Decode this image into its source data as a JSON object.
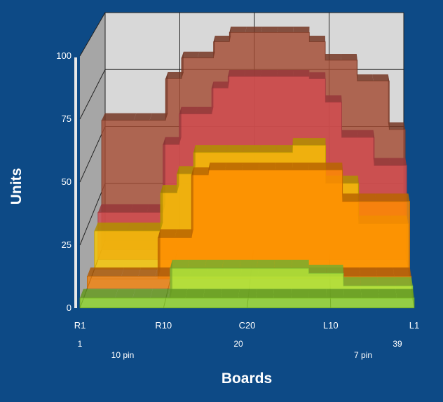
{
  "chart_data": {
    "type": "area",
    "style": "3d-stepped-area",
    "title": "",
    "xlabel": "Boards",
    "ylabel": "Units",
    "ylim": [
      0,
      100
    ],
    "yticks": [
      0,
      25,
      50,
      75,
      100
    ],
    "x_tick_labels": [
      "R1",
      "R10",
      "C20",
      "L10",
      "L1"
    ],
    "x_secondary_labels": [
      "1",
      "10 pin",
      "20",
      "7 pin",
      "39"
    ],
    "grid": true,
    "legend": "none",
    "x": [
      1,
      5,
      7,
      9,
      11,
      13,
      15,
      17,
      19,
      21,
      23,
      25,
      27,
      29,
      31,
      33,
      35,
      37,
      39
    ],
    "series": [
      {
        "color": "#8bd22b",
        "values": [
          4,
          4,
          4,
          4,
          4,
          4,
          4,
          4,
          4,
          4,
          4,
          4,
          4,
          4,
          4,
          4,
          4,
          4,
          4
        ]
      },
      {
        "color": "#a8f040",
        "values": [
          0,
          0,
          0,
          0,
          12,
          12,
          12,
          12,
          12,
          12,
          12,
          12,
          10,
          10,
          5,
          5,
          5,
          5,
          5
        ]
      },
      {
        "color": "#ee7f0b",
        "values": [
          5,
          5,
          5,
          5,
          5,
          5,
          5,
          5,
          5,
          5,
          5,
          5,
          5,
          5,
          5,
          5,
          5,
          5,
          5
        ]
      },
      {
        "color": "#ff8c00",
        "values": [
          0,
          0,
          0,
          17,
          17,
          43,
          45,
          45,
          45,
          45,
          45,
          45,
          45,
          45,
          32,
          32,
          32,
          32,
          32
        ]
      },
      {
        "color": "#f6c600",
        "values": [
          16,
          16,
          16,
          32,
          40,
          49,
          49,
          49,
          49,
          49,
          49,
          52,
          52,
          36,
          36,
          19,
          19,
          19,
          19
        ]
      },
      {
        "color": "#d24c51",
        "values": [
          20,
          20,
          20,
          49,
          62,
          62,
          73,
          78,
          78,
          78,
          78,
          78,
          77,
          67,
          52,
          52,
          40,
          40,
          40
        ]
      },
      {
        "color": "#a34c33",
        "values": [
          56,
          56,
          56,
          74,
          83,
          83,
          90,
          94,
          94,
          94,
          94,
          94,
          90,
          82,
          82,
          73,
          73,
          52,
          52
        ]
      }
    ]
  }
}
